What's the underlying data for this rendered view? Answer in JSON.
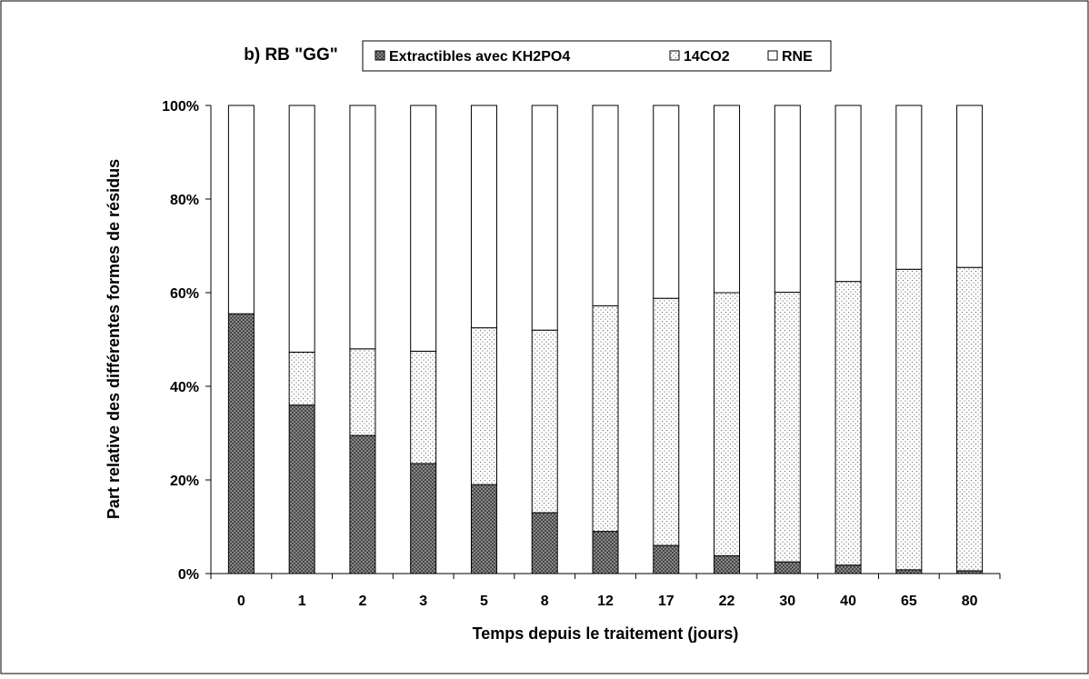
{
  "chart_data": {
    "type": "bar",
    "stacked": true,
    "normalized": true,
    "title": "b) RB \"GG\"",
    "xlabel": "Temps depuis le traitement (jours)",
    "ylabel": "Part relative des différentes formes de résidus",
    "categories": [
      "0",
      "1",
      "2",
      "3",
      "5",
      "8",
      "12",
      "17",
      "22",
      "30",
      "40",
      "65",
      "80"
    ],
    "ylim": [
      0,
      100
    ],
    "y_ticks": [
      0,
      20,
      40,
      60,
      80,
      100
    ],
    "y_tick_labels": [
      "0%",
      "20%",
      "40%",
      "60%",
      "80%",
      "100%"
    ],
    "grid": false,
    "legend_position": "top",
    "series": [
      {
        "name": "Extractibles avec KH2PO4",
        "pattern": "crosshatch-dark",
        "values": [
          55.5,
          36,
          29.5,
          23.5,
          19,
          13,
          9,
          6,
          3.8,
          2.5,
          1.8,
          0.8,
          0.6
        ]
      },
      {
        "name": "14CO2",
        "pattern": "dotted-light",
        "values": [
          0,
          11.3,
          18.5,
          24,
          33.5,
          39,
          48.2,
          52.8,
          56.2,
          57.6,
          60.6,
          64.2,
          64.8
        ]
      },
      {
        "name": "RNE",
        "pattern": "white",
        "values": [
          44.5,
          52.7,
          52.0,
          52.5,
          47.5,
          48.0,
          42.8,
          41.2,
          40.0,
          39.9,
          37.6,
          35.0,
          34.6
        ]
      }
    ],
    "colors": {
      "outline": "#000000",
      "background": "#ffffff",
      "hatch_base": "#9c9c9c",
      "hatch_line": "#3a3a3a",
      "dot": "#6a6a6a"
    }
  }
}
